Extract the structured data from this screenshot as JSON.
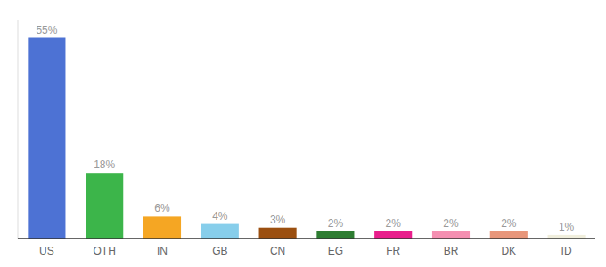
{
  "chart_data": {
    "type": "bar",
    "categories": [
      "US",
      "OTH",
      "IN",
      "GB",
      "CN",
      "EG",
      "FR",
      "BR",
      "DK",
      "ID"
    ],
    "values": [
      55,
      18,
      6,
      4,
      3,
      2,
      2,
      2,
      2,
      1
    ],
    "value_labels": [
      "55%",
      "18%",
      "6%",
      "4%",
      "3%",
      "2%",
      "2%",
      "2%",
      "2%",
      "1%"
    ],
    "colors": [
      "#4d72d4",
      "#3cb54a",
      "#f5a623",
      "#87ceeb",
      "#9b4f10",
      "#2e7d32",
      "#e91e8c",
      "#f48fb1",
      "#e8967a",
      "#f0eedc"
    ],
    "ylim": [
      0,
      60
    ],
    "data_labels": true,
    "tick_labels": "x",
    "grid": false
  }
}
